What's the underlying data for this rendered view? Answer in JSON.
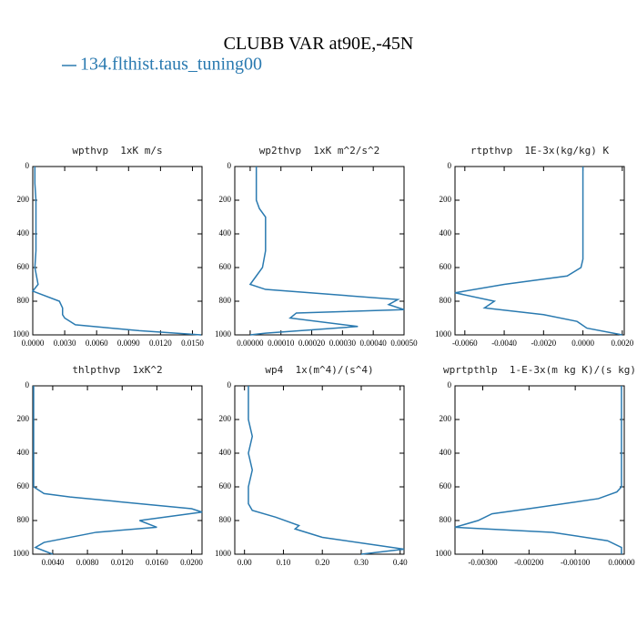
{
  "figure": {
    "title": "CLUBB VAR at90E,-45N",
    "legend": "134.flthist.taus_tuning00",
    "color": "#2a7ab0"
  },
  "chart_data": [
    {
      "type": "line",
      "title": "wpthvp  1xK m/s",
      "levels": [
        0,
        100,
        200,
        300,
        400,
        500,
        600,
        700,
        740,
        800,
        840,
        880,
        900,
        940,
        975,
        1000
      ],
      "series": [
        {
          "color": "#2a7ab0",
          "values": [
            0.0002,
            0.0002,
            0.0003,
            0.0003,
            0.0003,
            0.0003,
            0.0002,
            0.0005,
            0.0,
            0.0025,
            0.0028,
            0.0028,
            0.003,
            0.004,
            0.01,
            0.0158
          ]
        }
      ],
      "xlim": [
        0,
        0.0159
      ],
      "xticks": [
        {
          "value": 0,
          "label": "0.0000"
        },
        {
          "value": 0.003,
          "label": "0.0030"
        },
        {
          "value": 0.006,
          "label": "0.0060"
        },
        {
          "value": 0.009,
          "label": "0.0090"
        },
        {
          "value": 0.012,
          "label": "0.0120"
        },
        {
          "value": 0.015,
          "label": "0.0150"
        }
      ],
      "ylim": [
        1000,
        0
      ],
      "yticks": [
        0,
        200,
        400,
        600,
        800,
        1000
      ]
    },
    {
      "type": "line",
      "title": "wp2thvp  1xK m^2/s^2",
      "levels": [
        0,
        200,
        250,
        300,
        400,
        500,
        600,
        650,
        700,
        730,
        790,
        820,
        850,
        870,
        900,
        950,
        990,
        1000
      ],
      "series": [
        {
          "color": "#2a7ab0",
          "values": [
            2e-05,
            2e-05,
            3e-05,
            5e-05,
            5e-05,
            5e-05,
            4e-05,
            2e-05,
            0.0,
            5e-05,
            0.00048,
            0.00045,
            0.0005,
            0.00015,
            0.00013,
            0.00035,
            5e-05,
            0.0
          ]
        }
      ],
      "xlim": [
        -5e-05,
        0.0005
      ],
      "xticks": [
        {
          "value": 0,
          "label": "0.00000"
        },
        {
          "value": 0.0001,
          "label": "0.00010"
        },
        {
          "value": 0.0002,
          "label": "0.00020"
        },
        {
          "value": 0.0003,
          "label": "0.00030"
        },
        {
          "value": 0.0004,
          "label": "0.00040"
        },
        {
          "value": 0.0005,
          "label": "0.00050"
        }
      ],
      "ylim": [
        1000,
        0
      ],
      "yticks": [
        0,
        200,
        400,
        600,
        800,
        1000
      ]
    },
    {
      "type": "line",
      "title": "rtpthvp  1E-3x(kg/kg) K",
      "levels": [
        0,
        200,
        400,
        550,
        600,
        650,
        700,
        750,
        800,
        840,
        880,
        920,
        960,
        1000
      ],
      "series": [
        {
          "color": "#2a7ab0",
          "values": [
            0.0,
            0.0,
            0.0,
            0.0,
            -0.0001,
            -0.0008,
            -0.004,
            -0.0065,
            -0.0045,
            -0.005,
            -0.002,
            -0.0003,
            0.0002,
            0.002
          ]
        }
      ],
      "xlim": [
        -0.0065,
        0.0021
      ],
      "xticks": [
        {
          "value": -0.006,
          "label": "-0.0060"
        },
        {
          "value": -0.004,
          "label": "-0.0040"
        },
        {
          "value": -0.002,
          "label": "-0.0020"
        },
        {
          "value": 0,
          "label": "0.0000"
        },
        {
          "value": 0.002,
          "label": "0.0020"
        }
      ],
      "ylim": [
        1000,
        0
      ],
      "yticks": [
        0,
        200,
        400,
        600,
        800,
        1000
      ]
    },
    {
      "type": "line",
      "title": "thlpthvp  1xK^2",
      "levels": [
        0,
        200,
        400,
        600,
        640,
        660,
        730,
        750,
        800,
        840,
        870,
        930,
        960,
        1000
      ],
      "series": [
        {
          "color": "#2a7ab0",
          "values": [
            0.0018,
            0.0018,
            0.0018,
            0.0018,
            0.003,
            0.006,
            0.02,
            0.0212,
            0.014,
            0.016,
            0.009,
            0.003,
            0.002,
            0.004
          ]
        }
      ],
      "xlim": [
        0.0017,
        0.0212
      ],
      "xticks": [
        {
          "value": 0.004,
          "label": "0.0040"
        },
        {
          "value": 0.008,
          "label": "0.0080"
        },
        {
          "value": 0.012,
          "label": "0.0120"
        },
        {
          "value": 0.016,
          "label": "0.0160"
        },
        {
          "value": 0.02,
          "label": "0.0200"
        }
      ],
      "ylim": [
        1000,
        0
      ],
      "yticks": [
        0,
        200,
        400,
        600,
        800,
        1000
      ]
    },
    {
      "type": "line",
      "title": "wp4  1x(m^4)/(s^4)",
      "levels": [
        0,
        200,
        300,
        400,
        500,
        600,
        700,
        740,
        780,
        830,
        850,
        900,
        950,
        970,
        1000
      ],
      "series": [
        {
          "color": "#2a7ab0",
          "values": [
            0.01,
            0.01,
            0.02,
            0.01,
            0.02,
            0.01,
            0.01,
            0.02,
            0.08,
            0.14,
            0.13,
            0.2,
            0.35,
            0.41,
            0.3
          ]
        }
      ],
      "xlim": [
        -0.025,
        0.41
      ],
      "xticks": [
        {
          "value": 0,
          "label": "0.00"
        },
        {
          "value": 0.1,
          "label": "0.10"
        },
        {
          "value": 0.2,
          "label": "0.20"
        },
        {
          "value": 0.3,
          "label": "0.30"
        },
        {
          "value": 0.4,
          "label": "0.40"
        }
      ],
      "ylim": [
        1000,
        0
      ],
      "yticks": [
        0,
        200,
        400,
        600,
        800,
        1000
      ]
    },
    {
      "type": "line",
      "title": "wprtpthlp  1-E-3x(m kg K)/(s kg)",
      "levels": [
        0,
        200,
        400,
        600,
        630,
        670,
        730,
        760,
        800,
        840,
        870,
        920,
        960,
        1000
      ],
      "series": [
        {
          "color": "#2a7ab0",
          "values": [
            0.0,
            0.0,
            0.0,
            0.0,
            -0.0001,
            -0.0005,
            -0.002,
            -0.0028,
            -0.0031,
            -0.0036,
            -0.0015,
            -0.0003,
            0.0,
            0.0
          ]
        }
      ],
      "xlim": [
        -0.0036,
        6e-05
      ],
      "xticks": [
        {
          "value": -0.003,
          "label": "-0.00300"
        },
        {
          "value": -0.002,
          "label": "-0.00200"
        },
        {
          "value": -0.001,
          "label": "-0.00100"
        },
        {
          "value": 0,
          "label": "0.00000"
        }
      ],
      "ylim": [
        1000,
        0
      ],
      "yticks": [
        0,
        200,
        400,
        600,
        800,
        1000
      ]
    }
  ]
}
